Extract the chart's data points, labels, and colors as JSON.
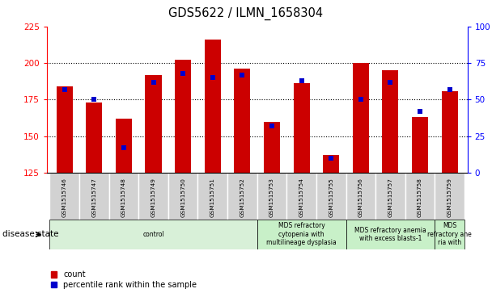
{
  "title": "GDS5622 / ILMN_1658304",
  "samples": [
    "GSM1515746",
    "GSM1515747",
    "GSM1515748",
    "GSM1515749",
    "GSM1515750",
    "GSM1515751",
    "GSM1515752",
    "GSM1515753",
    "GSM1515754",
    "GSM1515755",
    "GSM1515756",
    "GSM1515757",
    "GSM1515758",
    "GSM1515759"
  ],
  "counts": [
    184,
    173,
    162,
    192,
    202,
    216,
    196,
    160,
    186,
    137,
    200,
    195,
    163,
    181
  ],
  "percentile_ranks": [
    57,
    50,
    17,
    62,
    68,
    65,
    67,
    32,
    63,
    10,
    50,
    62,
    42,
    57
  ],
  "ylim_left": [
    125,
    225
  ],
  "ylim_right": [
    0,
    100
  ],
  "yticks_left": [
    125,
    150,
    175,
    200,
    225
  ],
  "yticks_right": [
    0,
    25,
    50,
    75,
    100
  ],
  "bar_color": "#cc0000",
  "dot_color": "#0000cc",
  "disease_groups": [
    {
      "label": "control",
      "start": 0,
      "end": 6,
      "color": "#d8f0d8"
    },
    {
      "label": "MDS refractory\ncytopenia with\nmultilineage dysplasia",
      "start": 7,
      "end": 9,
      "color": "#c8f0c8"
    },
    {
      "label": "MDS refractory anemia\nwith excess blasts-1",
      "start": 10,
      "end": 12,
      "color": "#c8f0c8"
    },
    {
      "label": "MDS\nrefractory ane\nria with",
      "start": 13,
      "end": 13,
      "color": "#c8f0c8"
    }
  ],
  "xlabel_disease": "disease state",
  "legend_count": "count",
  "legend_pct": "percentile rank within the sample",
  "bar_width": 0.55,
  "dot_marker_size": 4.0
}
